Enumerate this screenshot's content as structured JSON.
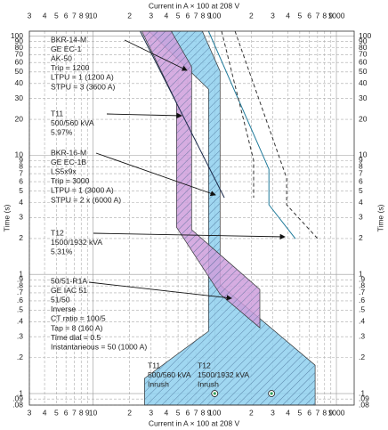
{
  "chart_data": {
    "type": "time-current",
    "xlabel": "Current in A × 100 at 208 V",
    "ylabel": "Time (s)",
    "xscale": "log",
    "yscale": "log",
    "xlim": [
      3,
      1400
    ],
    "ylim": [
      0.08,
      110
    ],
    "xticks": [
      3,
      4,
      5,
      6,
      7,
      8,
      9,
      10,
      {
        "value": 20,
        "label": "2"
      },
      {
        "value": 30,
        "label": "3"
      },
      {
        "value": 40,
        "label": "4"
      },
      {
        "value": 50,
        "label": "5"
      },
      {
        "value": 60,
        "label": "6"
      },
      {
        "value": 70,
        "label": "7"
      },
      {
        "value": 80,
        "label": "8"
      },
      {
        "value": 90,
        "label": "9"
      },
      100,
      {
        "value": 200,
        "label": "2"
      },
      {
        "value": 300,
        "label": "3"
      },
      {
        "value": 400,
        "label": "4"
      },
      {
        "value": 500,
        "label": "5"
      },
      {
        "value": 600,
        "label": "6"
      },
      {
        "value": 700,
        "label": "7"
      },
      {
        "value": 800,
        "label": "8"
      },
      {
        "value": 900,
        "label": "9"
      },
      1000
    ],
    "yticks": [
      100,
      90,
      80,
      70,
      60,
      50,
      40,
      30,
      20,
      10,
      9,
      8,
      7,
      6,
      5,
      4,
      3,
      2,
      1,
      {
        "value": 0.9,
        "label": ".9"
      },
      {
        "value": 0.8,
        "label": ".8"
      },
      {
        "value": 0.7,
        "label": ".7"
      },
      {
        "value": 0.6,
        "label": ".6"
      },
      {
        "value": 0.5,
        "label": ".5"
      },
      {
        "value": 0.4,
        "label": ".4"
      },
      {
        "value": 0.3,
        "label": ".3"
      },
      {
        "value": 0.2,
        "label": ".2"
      },
      {
        "value": 0.1,
        "label": ".1"
      },
      {
        "value": 0.09,
        "label": ".09"
      },
      {
        "value": 0.08,
        "label": ".08"
      }
    ],
    "grid": true,
    "series": [
      {
        "style": "band",
        "color": "#8fd0ef",
        "x": [
          28.8,
          79.1,
          110.7,
          110.7,
          668,
          668,
          26.5,
          26.5,
          88.9,
          88.9
        ],
        "values": [
          110,
          110,
          50.7,
          0.815,
          0.173,
          0.08,
          0.08,
          0.134,
          0.333,
          35.9
        ]
      },
      {
        "style": "band",
        "color": "#cf9fdc",
        "x": [
          25.2,
          43.9,
          64.6,
          64.6,
          235,
          235,
          110.7,
          48.5,
          48.5
        ],
        "values": [
          110,
          110,
          55.3,
          2.37,
          0.748,
          0.356,
          0.683,
          2.49,
          27.7
        ]
      },
      {
        "style": "solid",
        "color": "#1a2a4a",
        "x": [
          24.4,
          120
        ],
        "values": [
          110,
          4.4
        ]
      },
      {
        "style": "solid",
        "color": "#1f7a9a",
        "x": [
          88.9,
          279,
          279,
          461
        ],
        "values": [
          110,
          7.63,
          3.84,
          1.99
        ]
      },
      {
        "style": "dashed",
        "color": "#333333",
        "x": [
          114,
          209,
          209
        ],
        "values": [
          110,
          9.06,
          4.4
        ]
      },
      {
        "style": "dashed",
        "color": "#333333",
        "x": [
          147,
          390,
          390,
          703
        ],
        "values": [
          110,
          6.43,
          3.84,
          1.99
        ]
      },
      {
        "style": "marker",
        "color": "#2e9e5a",
        "x": [
          100,
          293
        ],
        "values": [
          0.1,
          0.1
        ]
      }
    ],
    "annotations": [
      {
        "lines": [
          "BKR-14-M",
          "GE EC-1",
          "AK-50",
          "Trip = 1200",
          "LTPU = 1 (1200 A)",
          "STPU = 3 (3600 A)"
        ]
      },
      {
        "lines": [
          "T11",
          "500/560 kVA",
          "5.97%"
        ]
      },
      {
        "lines": [
          "BKR-16-M",
          "GE EC-1B",
          "LS5x9x",
          "Trip = 3000",
          "LTPU = 1 (3000 A)",
          "STPU = 2 x (6000 A)"
        ]
      },
      {
        "lines": [
          "T12",
          "1500/1932 kVA",
          "5.31%"
        ]
      },
      {
        "lines": [
          "50/51-R1A",
          "GE IAC 51",
          "51/50",
          "Inverse",
          "CT ratio = 100/5",
          "Tap = 8 (160 A)",
          "Time dial = 0.5",
          "Instantaneous = 50 (1000 A)"
        ]
      },
      {
        "lines": [
          "T11",
          "500/560 kVA",
          "Inrush"
        ]
      },
      {
        "lines": [
          "T12",
          "1500/1932 kVA",
          "Inrush"
        ]
      }
    ]
  }
}
